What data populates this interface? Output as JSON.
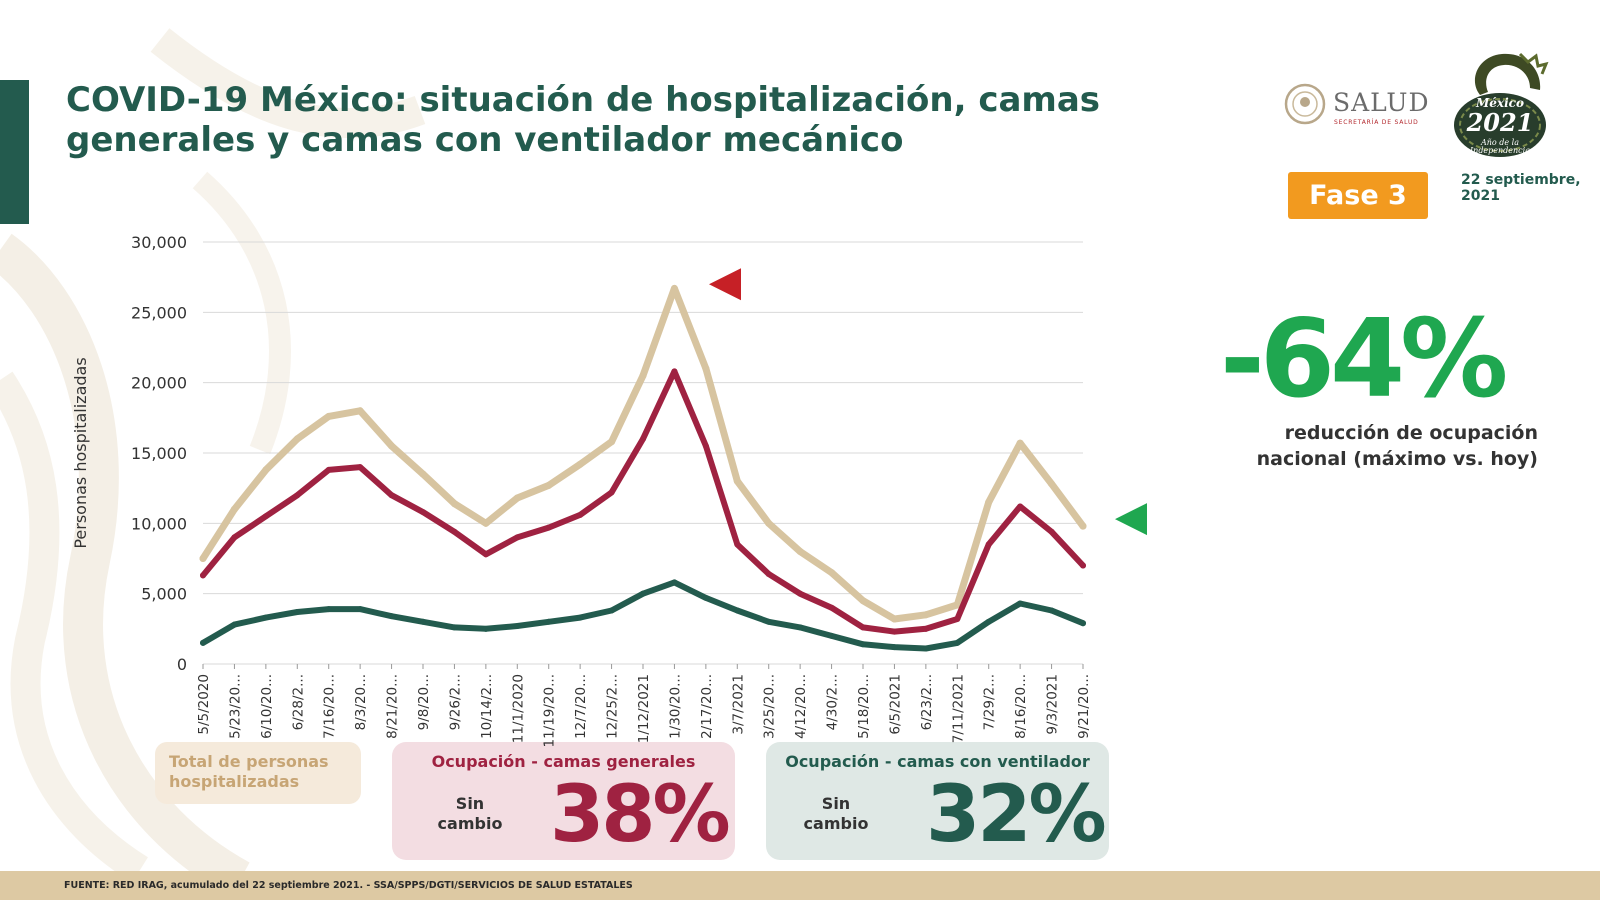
{
  "header": {
    "title": "COVID-19 México: situación de hospitalización, camas generales y camas con ventilador mecánico",
    "logo_text": "SALUD",
    "logo_subtext": "SECRETARÍA DE SALUD",
    "phase": "Fase 3",
    "date": "22 septiembre, 2021"
  },
  "logo_2021": {
    "mexico": "México",
    "year": "2021",
    "subtitle_1": "Año de la",
    "subtitle_2": "Independencia"
  },
  "kpi": {
    "value": "-64%",
    "description": "reducción de ocupación nacional (máximo vs. hoy)"
  },
  "colors": {
    "total": "#d7c4a0",
    "general": "#9f2241",
    "ventilator": "#235b4e",
    "marker_red": "#c62026",
    "marker_green": "#1fa750"
  },
  "chart_data": {
    "type": "line",
    "ylabel": "Personas hospitalizadas",
    "xlabel": "",
    "ylim": [
      0,
      30000
    ],
    "yticks": [
      "30,000",
      "25,000",
      "20,000",
      "15,000",
      "10,000",
      "5,000",
      "0"
    ],
    "x_tick_labels": [
      "5/5/2020",
      "5/23/20...",
      "6/10/20...",
      "6/28/2...",
      "7/16/20...",
      "8/3/20...",
      "8/21/20...",
      "9/8/20...",
      "9/26/2...",
      "10/14/2...",
      "11/1/2020",
      "11/19/20...",
      "12/7/20...",
      "12/25/2...",
      "1/12/2021",
      "1/30/20...",
      "2/17/20...",
      "3/7/2021",
      "3/25/20...",
      "4/12/20...",
      "4/30/2...",
      "5/18/20...",
      "6/5/2021",
      "6/23/2...",
      "7/11/2021",
      "7/29/2...",
      "8/16/20...",
      "9/3/2021",
      "9/21/20..."
    ],
    "grid": "horizontal",
    "markers": [
      {
        "name": "max",
        "color": "#c62026",
        "value": 27000
      },
      {
        "name": "today",
        "color": "#1fa750",
        "value": 10300
      }
    ],
    "series": [
      {
        "name": "Total de personas hospitalizadas",
        "color": "#d7c4a0",
        "values": [
          7500,
          11000,
          13800,
          16000,
          17600,
          18000,
          15500,
          13500,
          11400,
          10000,
          11800,
          12700,
          14200,
          15800,
          20500,
          26700,
          21000,
          13000,
          10000,
          8000,
          6500,
          4500,
          3200,
          3500,
          4200,
          11500,
          15700,
          12800,
          9800
        ]
      },
      {
        "name": "Ocupación - camas generales",
        "color": "#9f2241",
        "values": [
          6300,
          9000,
          10500,
          12000,
          13800,
          14000,
          12000,
          10800,
          9400,
          7800,
          9000,
          9700,
          10600,
          12200,
          16000,
          20800,
          15500,
          8500,
          6400,
          5000,
          4000,
          2600,
          2300,
          2500,
          3200,
          8500,
          11200,
          9400,
          7000
        ]
      },
      {
        "name": "Ocupación - camas con ventilador",
        "color": "#235b4e",
        "values": [
          1500,
          2800,
          3300,
          3700,
          3900,
          3900,
          3400,
          3000,
          2600,
          2500,
          2700,
          3000,
          3300,
          3800,
          5000,
          5800,
          4700,
          3800,
          3000,
          2600,
          2000,
          1400,
          1200,
          1100,
          1500,
          3000,
          4300,
          3800,
          2900
        ]
      }
    ]
  },
  "legend": {
    "total_label": "Total de personas hospitalizadas"
  },
  "cards": {
    "general": {
      "title": "Ocupación - camas generales",
      "status": "Sin cambio",
      "value": "38%"
    },
    "ventilator": {
      "title": "Ocupación - camas con ventilador",
      "status": "Sin cambio",
      "value": "32%"
    }
  },
  "footer": {
    "source": "FUENTE: RED IRAG, acumulado del 22 septiembre 2021. -  SSA/SPPS/DGTI/SERVICIOS DE SALUD ESTATALES"
  }
}
